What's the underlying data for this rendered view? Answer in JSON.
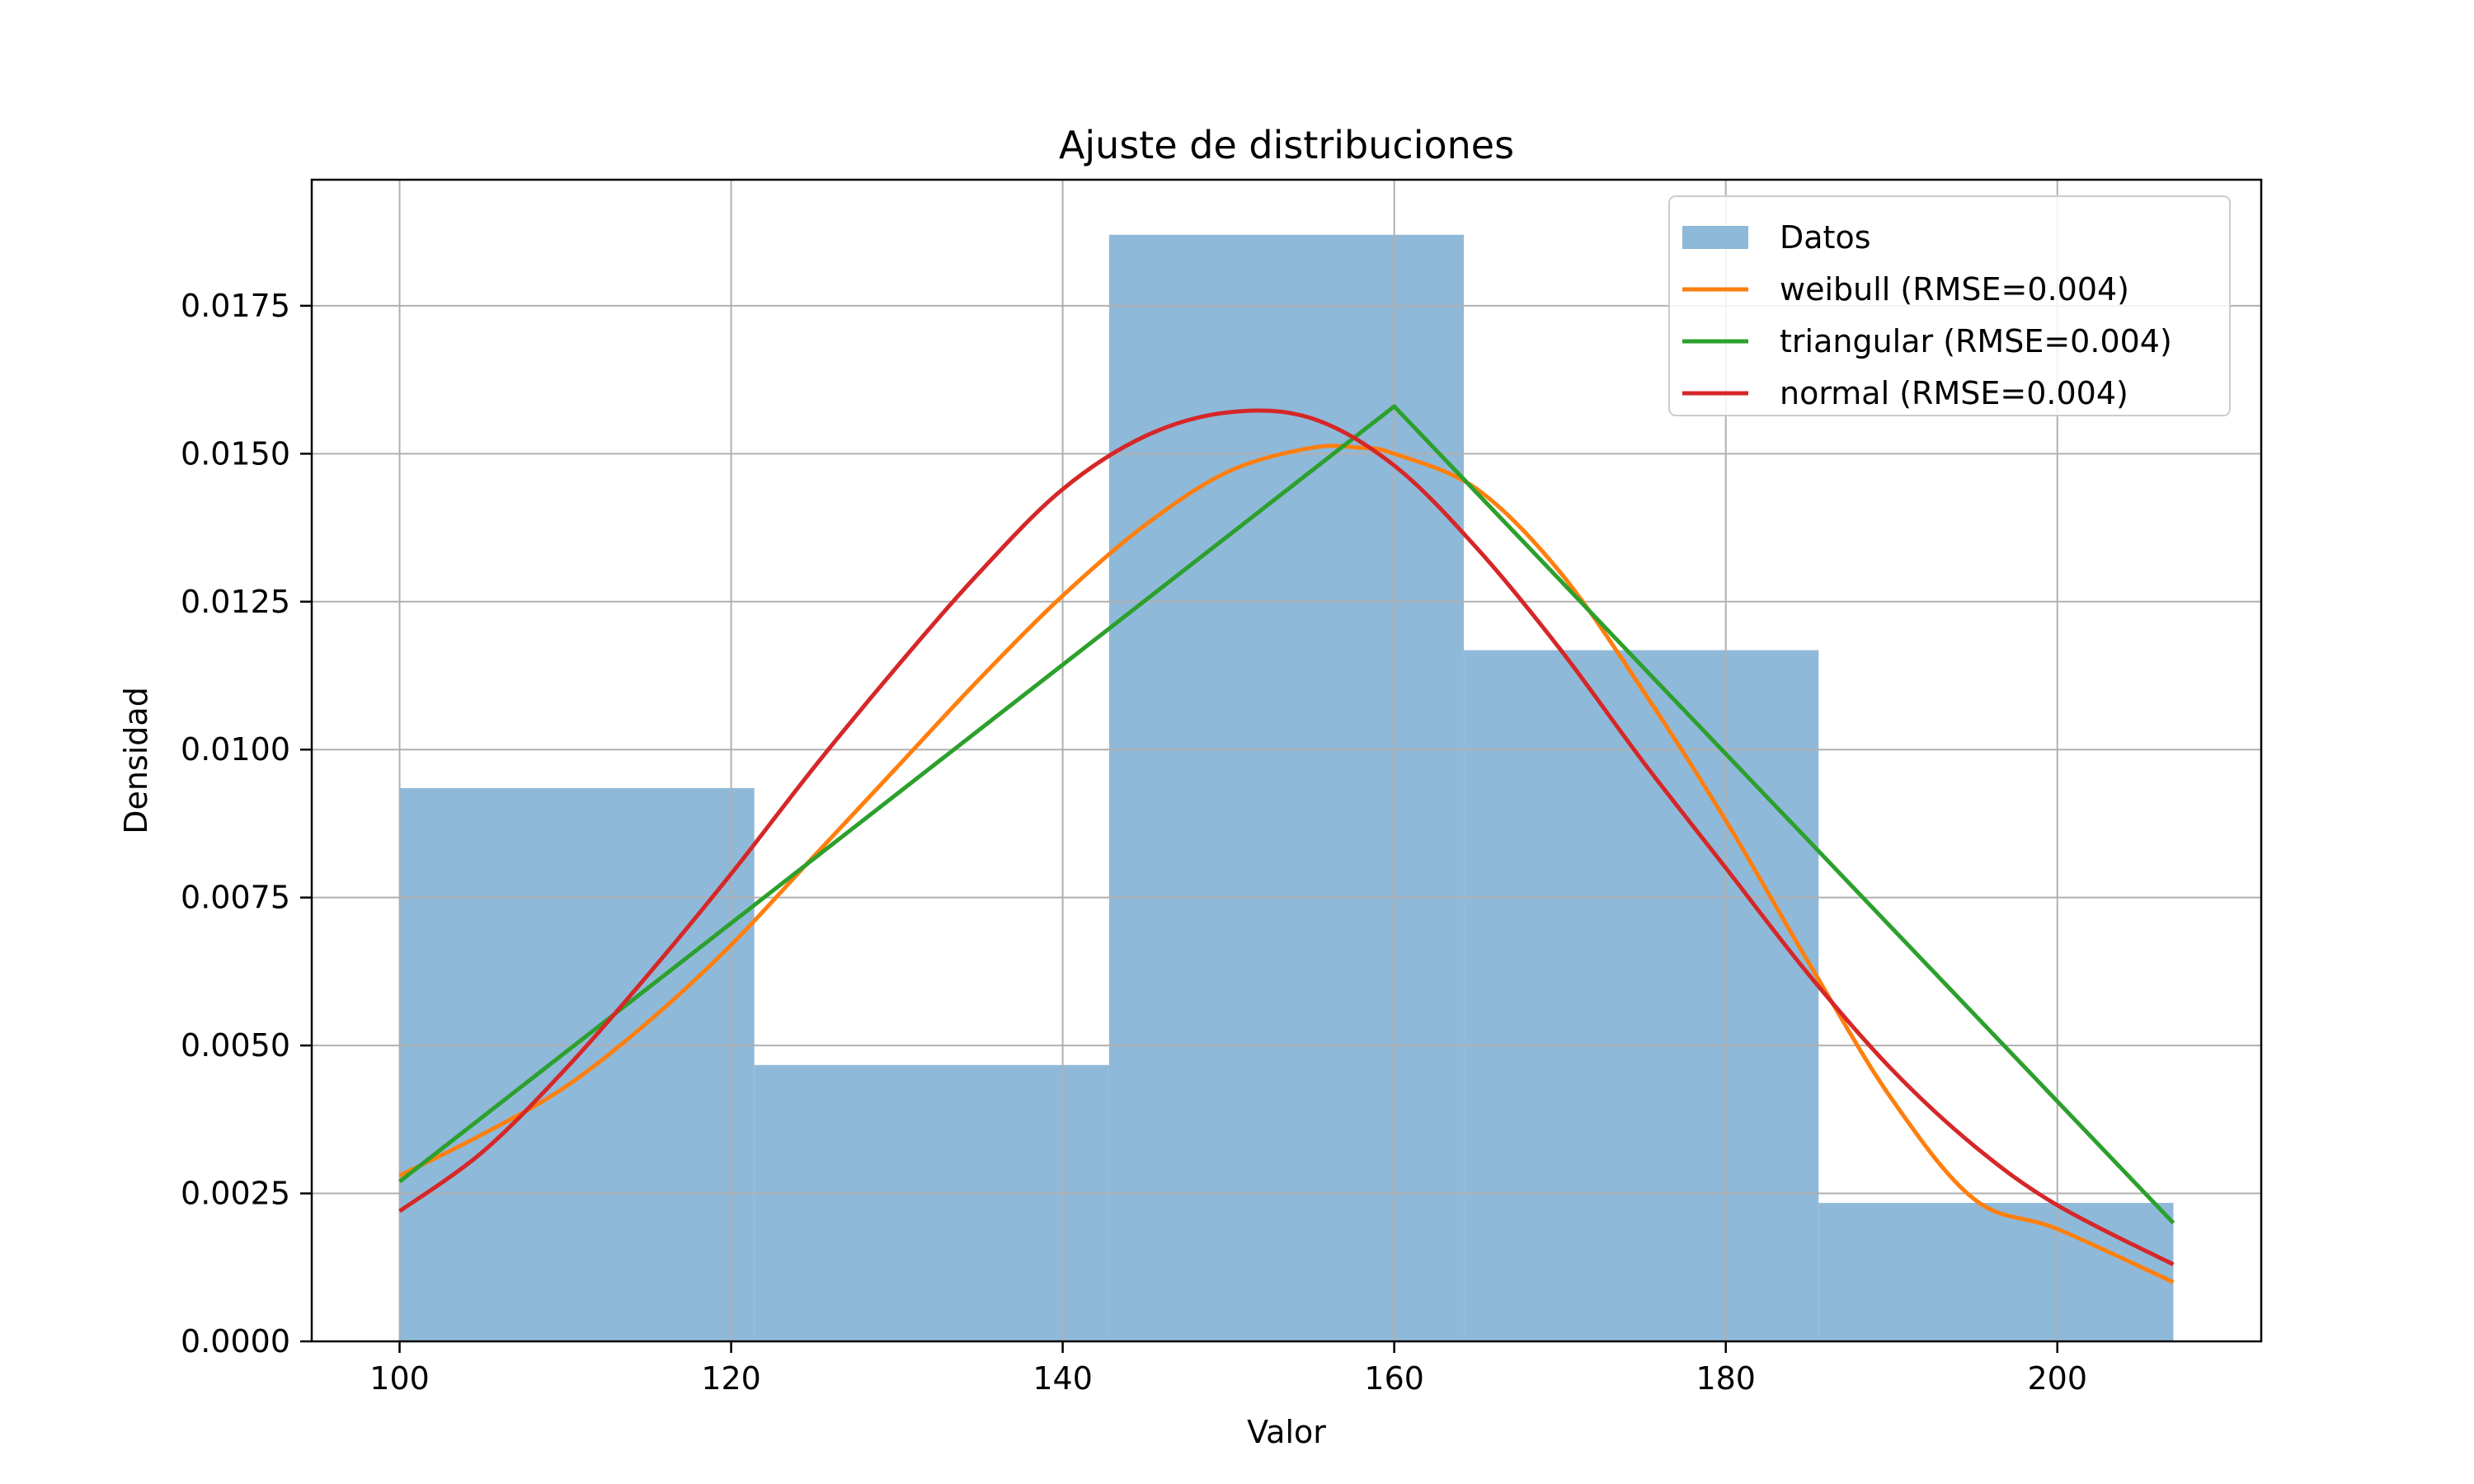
{
  "chart_data": {
    "type": "bar",
    "title": "Ajuste de distribuciones",
    "xlabel": "Valor",
    "ylabel": "Densidad",
    "xlim": [
      94.7,
      212.3
    ],
    "ylim": [
      0,
      0.01963
    ],
    "xticks": [
      100,
      120,
      140,
      160,
      180,
      200
    ],
    "xtick_labels": [
      "100",
      "120",
      "140",
      "160",
      "180",
      "200"
    ],
    "yticks": [
      0,
      0.0025,
      0.005,
      0.0075,
      0.01,
      0.0125,
      0.015,
      0.0175
    ],
    "ytick_labels": [
      "0.0000",
      "0.0025",
      "0.0050",
      "0.0075",
      "0.0100",
      "0.0125",
      "0.0150",
      "0.0175"
    ],
    "grid": true,
    "legend_position": "top-right",
    "histogram": {
      "name": "Datos",
      "color": "#8fb9d9",
      "bins": [
        {
          "start": 100.0,
          "end": 121.4,
          "density": 0.00935
        },
        {
          "start": 121.4,
          "end": 142.8,
          "density": 0.00467
        },
        {
          "start": 142.8,
          "end": 164.2,
          "density": 0.0187
        },
        {
          "start": 164.2,
          "end": 185.6,
          "density": 0.01168
        },
        {
          "start": 185.6,
          "end": 207.0,
          "density": 0.00234
        }
      ]
    },
    "series": [
      {
        "name": "weibull (RMSE=0.004)",
        "color": "#ff7f0e",
        "x": [
          100,
          105,
          110,
          115,
          120,
          125,
          130,
          135,
          140,
          145,
          150,
          155,
          158,
          160,
          165,
          170,
          175,
          180,
          185,
          190,
          195,
          200,
          207
        ],
        "y": [
          0.0028,
          0.0035,
          0.0043,
          0.0054,
          0.0067,
          0.0082,
          0.0097,
          0.0112,
          0.0126,
          0.0138,
          0.0147,
          0.0151,
          0.0151,
          0.015,
          0.0144,
          0.013,
          0.011,
          0.0088,
          0.0064,
          0.0041,
          0.0024,
          0.0019,
          0.001
        ]
      },
      {
        "name": "triangular (RMSE=0.004)",
        "color": "#2ca02c",
        "x": [
          100,
          160,
          207
        ],
        "y": [
          0.0027,
          0.0158,
          0.002
        ]
      },
      {
        "name": "normal (RMSE=0.004)",
        "color": "#d62728",
        "x": [
          100,
          105,
          110,
          115,
          120,
          125,
          130,
          135,
          140,
          145,
          150,
          155,
          160,
          165,
          170,
          175,
          180,
          185,
          190,
          195,
          200,
          207
        ],
        "y": [
          0.0022,
          0.0032,
          0.0046,
          0.0062,
          0.0079,
          0.0097,
          0.0114,
          0.013,
          0.0144,
          0.0153,
          0.0157,
          0.0156,
          0.0148,
          0.0134,
          0.0117,
          0.0098,
          0.008,
          0.0062,
          0.0046,
          0.0033,
          0.0023,
          0.0013
        ]
      }
    ]
  }
}
